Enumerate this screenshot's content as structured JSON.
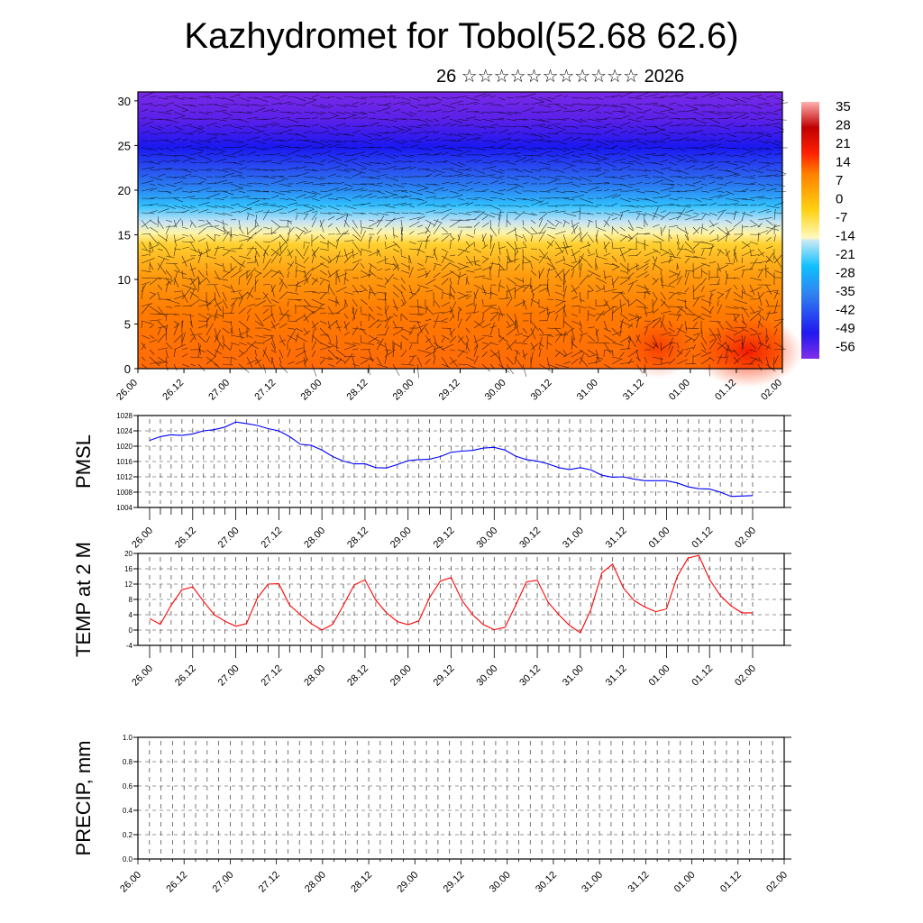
{
  "title": "Kazhydromet for Tobol(52.68 62.6)",
  "subtitle": "26 ☆☆☆☆☆☆☆☆☆☆☆ 2026",
  "chart_data": [
    {
      "type": "heatmap",
      "title": "Kazhydromet for Tobol(52.68 62.6)",
      "description_kind": "time-height cross-section with wind vectors",
      "x_tick_labels": [
        "26.00",
        "26.12",
        "27.00",
        "27.12",
        "28.00",
        "28.12",
        "29.00",
        "29.12",
        "30.00",
        "30.12",
        "31.00",
        "31.12",
        "01.00",
        "01.12",
        "02.00"
      ],
      "y_tick_labels": [
        "0",
        "5",
        "10",
        "15",
        "20",
        "25",
        "30"
      ],
      "ylim": [
        0,
        31
      ],
      "colorbar": {
        "labels": [
          "35",
          "28",
          "21",
          "14",
          "7",
          "0",
          "-7",
          "-14",
          "-21",
          "-28",
          "-35",
          "-42",
          "-49",
          "-56"
        ],
        "range": [
          -63,
          42
        ]
      }
    },
    {
      "type": "line",
      "ylabel": "PMSL",
      "ylim": [
        1004,
        1028
      ],
      "y_tick_labels": [
        "1004",
        "1008",
        "1012",
        "1016",
        "1020",
        "1024",
        "1028"
      ],
      "x_tick_labels": [
        "26.00",
        "26.12",
        "27.00",
        "27.12",
        "28.00",
        "28.12",
        "29.00",
        "29.12",
        "30.00",
        "30.12",
        "31.00",
        "31.12",
        "01.00",
        "01.12",
        "02.00"
      ],
      "step_hours": 3,
      "color": "#0000ff",
      "values": [
        1021.5,
        1022.5,
        1023,
        1022.8,
        1023.2,
        1024,
        1024.3,
        1025,
        1026.3,
        1025.9,
        1025.4,
        1024.6,
        1024,
        1022.5,
        1020.5,
        1020.2,
        1019,
        1017.3,
        1016.1,
        1015.4,
        1015.4,
        1014.4,
        1014.3,
        1015.2,
        1016.2,
        1016.5,
        1016.6,
        1017.3,
        1018.4,
        1018.7,
        1018.9,
        1019.5,
        1019.7,
        1019,
        1017.4,
        1016.5,
        1016.1,
        1015.4,
        1014.4,
        1013.9,
        1014.4,
        1013.8,
        1012.4,
        1011.9,
        1012,
        1011.4,
        1011,
        1011,
        1011,
        1010.4,
        1009.4,
        1008.9,
        1008.8,
        1008,
        1006.9,
        1007,
        1007.1
      ]
    },
    {
      "type": "line",
      "ylabel": "TEMP at 2 M",
      "ylim": [
        -4,
        20
      ],
      "y_tick_labels": [
        "-4",
        "0",
        "4",
        "8",
        "12",
        "16",
        "20"
      ],
      "x_tick_labels": [
        "26.00",
        "26.12",
        "27.00",
        "27.12",
        "28.00",
        "28.12",
        "29.00",
        "29.12",
        "30.00",
        "30.12",
        "31.00",
        "31.12",
        "01.00",
        "01.12",
        "02.00"
      ],
      "step_hours": 3,
      "color": "#ff0000",
      "values": [
        3,
        1.5,
        6.5,
        10.5,
        11.3,
        7.5,
        4,
        2.3,
        1,
        1.7,
        8.3,
        12,
        12.1,
        6.5,
        4,
        1.7,
        0,
        1.5,
        6.5,
        11.8,
        13.1,
        7.8,
        4.5,
        2.2,
        1.4,
        2.4,
        8.5,
        12.8,
        13.7,
        7.8,
        4,
        1.4,
        0.1,
        0.7,
        6.5,
        12.6,
        13,
        7.3,
        4,
        1.2,
        -0.7,
        5.5,
        15,
        17.2,
        11,
        7.7,
        6,
        4.8,
        5.5,
        14,
        18.8,
        19.5,
        13.2,
        9,
        6.3,
        4.5,
        4.5
      ]
    },
    {
      "type": "line",
      "ylabel": "PRECIP, mm",
      "ylim": [
        0,
        1
      ],
      "y_tick_labels": [
        "0.0",
        "0.2",
        "0.4",
        "0.6",
        "0.8",
        "1.0"
      ],
      "x_tick_labels": [
        "26.00",
        "26.12",
        "27.00",
        "27.12",
        "28.00",
        "28.12",
        "29.00",
        "29.12",
        "30.00",
        "30.12",
        "31.00",
        "31.12",
        "01.00",
        "01.12",
        "02.00"
      ],
      "values": []
    }
  ]
}
